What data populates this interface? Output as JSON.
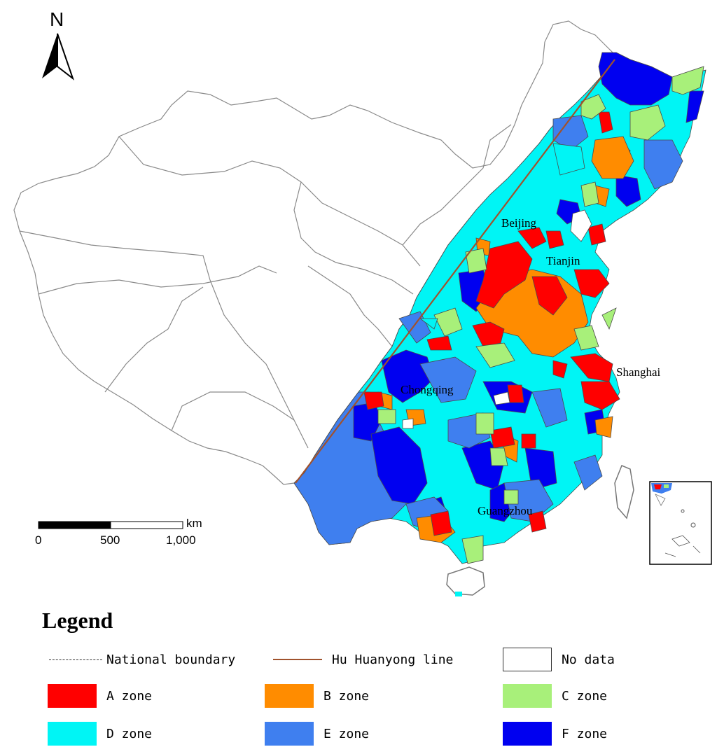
{
  "map": {
    "north_label": "N",
    "cities": [
      {
        "name": "Beijing"
      },
      {
        "name": "Tianjin"
      },
      {
        "name": "Shanghai"
      },
      {
        "name": "Chongqing"
      },
      {
        "name": "Guangzhou"
      }
    ],
    "scale_bar": {
      "unit": "km",
      "ticks": [
        "0",
        "500",
        "1,000"
      ]
    }
  },
  "legend": {
    "title": "Legend",
    "items": [
      {
        "label": "National boundary",
        "kind": "dashed-line",
        "color": "#333333"
      },
      {
        "label": "Hu Huanyong line",
        "kind": "line",
        "color": "#a0522d"
      },
      {
        "label": "No data",
        "kind": "box",
        "color": "#ffffff"
      },
      {
        "label": "A zone",
        "kind": "fill",
        "color": "#ff0000"
      },
      {
        "label": "B zone",
        "kind": "fill",
        "color": "#ff8c00"
      },
      {
        "label": "C zone",
        "kind": "fill",
        "color": "#a8f07a"
      },
      {
        "label": "D zone",
        "kind": "fill",
        "color": "#00f5f5"
      },
      {
        "label": "E zone",
        "kind": "fill",
        "color": "#3f7fef"
      },
      {
        "label": "F zone",
        "kind": "fill",
        "color": "#0000f0"
      }
    ]
  }
}
